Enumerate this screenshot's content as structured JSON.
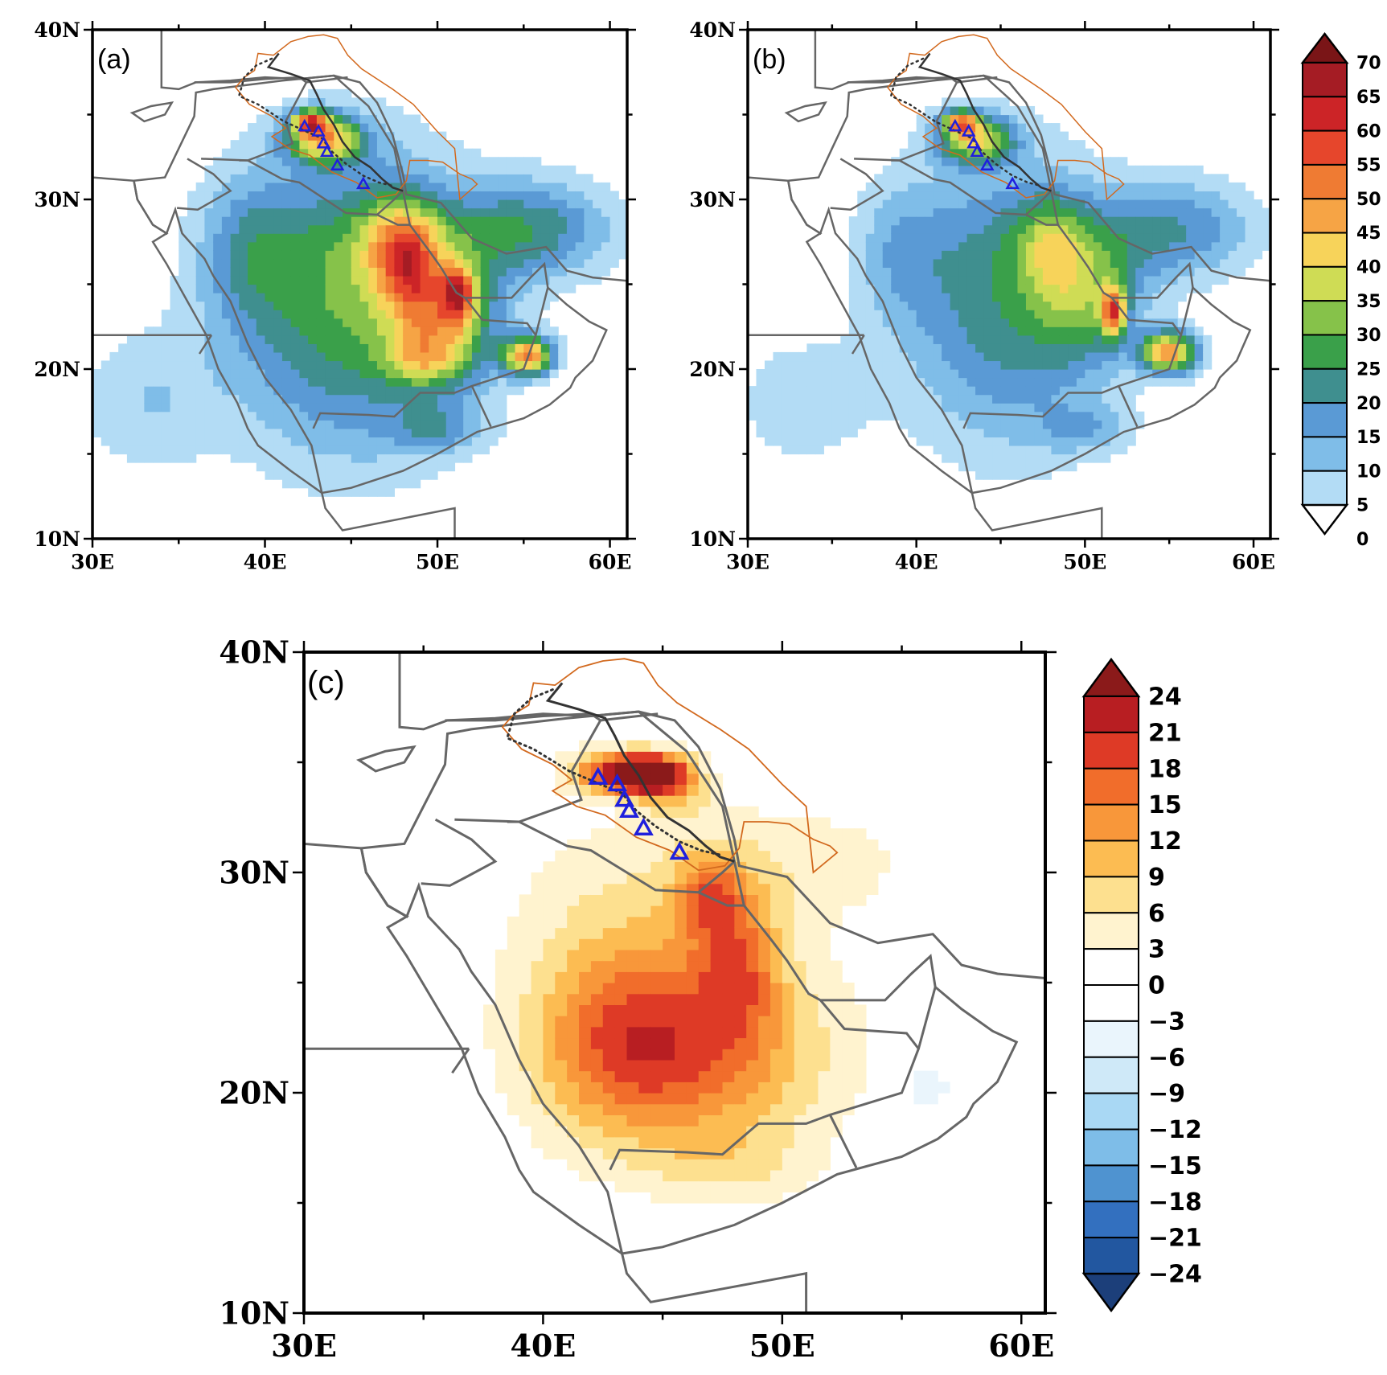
{
  "colors": {
    "coast": "#666666",
    "border": "#666666",
    "basin_outline": "#d2691e",
    "river_line": "#333333",
    "station_marker": "#1f1fdd",
    "absolute_scale": [
      "#ffffff",
      "#b3dcf5",
      "#7fbde8",
      "#5a9ad5",
      "#3f8f8f",
      "#3aa04a",
      "#86c24a",
      "#cfdc55",
      "#f7d35a",
      "#f6a445",
      "#ef7b33",
      "#e6462c",
      "#cc2427",
      "#a51c24",
      "#7a1517"
    ],
    "difference_scale": [
      "#1c3f7a",
      "#2257a0",
      "#3370bf",
      "#4f93d0",
      "#7ebde8",
      "#a9d8f4",
      "#cfe9f8",
      "#eaf5fc",
      "#ffffff",
      "#ffffff",
      "#fff3cf",
      "#fde08f",
      "#fcbc52",
      "#f8973a",
      "#f16d2b",
      "#de3a26",
      "#b81e22",
      "#8b1a1a"
    ]
  },
  "panels": [
    {
      "id": "a",
      "tag": "(a)",
      "lon_range": [
        30,
        61
      ],
      "lat_range": [
        10,
        40
      ],
      "lon_ticks": [
        "30E",
        "40E",
        "50E",
        "60E"
      ],
      "lat_ticks": [
        "10N",
        "20N",
        "30N",
        "40N"
      ]
    },
    {
      "id": "b",
      "tag": "(b)",
      "lon_range": [
        30,
        61
      ],
      "lat_range": [
        10,
        40
      ],
      "lon_ticks": [
        "30E",
        "40E",
        "50E",
        "60E"
      ],
      "lat_ticks": [
        "10N",
        "20N",
        "30N",
        "40N"
      ]
    },
    {
      "id": "c",
      "tag": "(c)",
      "lon_range": [
        30,
        61
      ],
      "lat_range": [
        10,
        40
      ],
      "lon_ticks": [
        "30E",
        "40E",
        "50E",
        "60E"
      ],
      "lat_ticks": [
        "10N",
        "20N",
        "30N",
        "40N"
      ]
    }
  ],
  "stations": [
    {
      "lon": 42.3,
      "lat": 34.3
    },
    {
      "lon": 43.1,
      "lat": 34.0
    },
    {
      "lon": 43.4,
      "lat": 33.3
    },
    {
      "lon": 43.6,
      "lat": 32.8
    },
    {
      "lon": 44.2,
      "lat": 32.0
    },
    {
      "lon": 45.7,
      "lat": 30.9
    }
  ],
  "colorbar_top": {
    "labels": [
      "70",
      "65",
      "60",
      "55",
      "50",
      "45",
      "40",
      "35",
      "30",
      "25",
      "20",
      "15",
      "10",
      "5",
      "0"
    ]
  },
  "colorbar_bottom": {
    "labels": [
      "24",
      "21",
      "18",
      "15",
      "12",
      "9",
      "6",
      "3",
      "0",
      "−3",
      "−6",
      "−9",
      "−12",
      "−15",
      "−18",
      "−21",
      "−24"
    ]
  }
}
